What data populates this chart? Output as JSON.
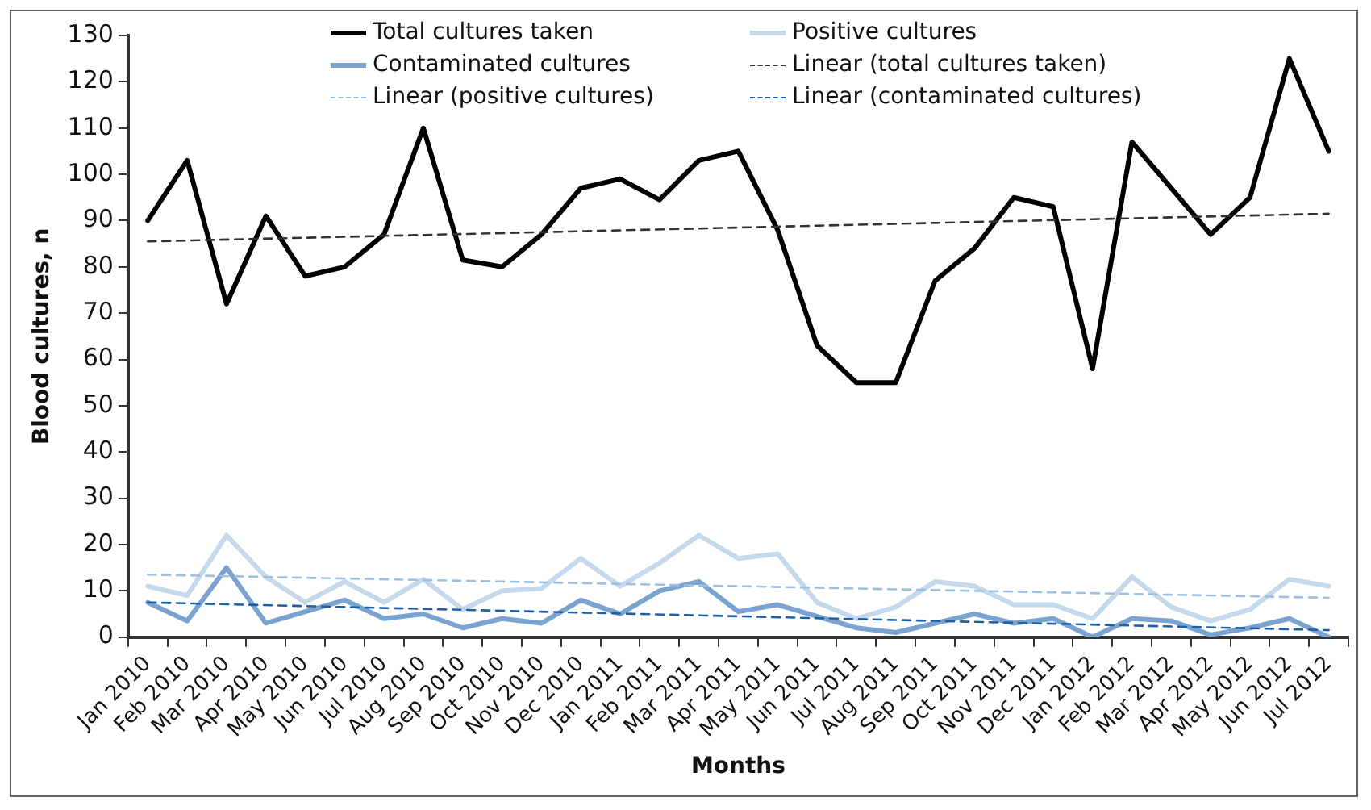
{
  "chart_data": {
    "type": "line",
    "xlabel": "Months",
    "ylabel": "Blood cultures, n",
    "categories": [
      "Jan 2010",
      "Feb 2010",
      "Mar 2010",
      "Apr 2010",
      "May 2010",
      "Jun 2010",
      "Jul 2010",
      "Aug 2010",
      "Sep 2010",
      "Oct 2010",
      "Nov 2010",
      "Dec 2010",
      "Jan 2011",
      "Feb 2011",
      "Mar 2011",
      "Apr 2011",
      "May 2011",
      "Jun 2011",
      "Jul 2011",
      "Aug 2011",
      "Sep 2011",
      "Oct 2011",
      "Nov 2011",
      "Dec 2011",
      "Jan 2012",
      "Feb 2012",
      "Mar 2012",
      "Apr 2012",
      "May 2012",
      "Jun 2012",
      "Jul 2012"
    ],
    "series": [
      {
        "name": "Total cultures taken",
        "color": "#000000",
        "values": [
          90,
          103,
          72,
          91,
          78,
          80,
          87,
          110,
          81.5,
          80,
          87,
          97,
          99,
          94.5,
          103,
          105,
          88,
          63,
          55,
          55,
          77,
          84,
          95,
          93,
          58,
          107,
          97,
          87,
          95,
          125,
          105
        ]
      },
      {
        "name": "Positive cultures",
        "color": "#c6d9ec",
        "values": [
          11,
          9,
          22,
          13,
          7.5,
          12,
          7.5,
          12.5,
          6,
          10,
          10.5,
          17,
          11,
          16,
          22,
          17,
          18,
          7.5,
          4,
          6.5,
          12,
          11,
          7,
          7,
          4,
          13,
          6.5,
          3.5,
          6,
          12.5,
          11
        ]
      },
      {
        "name": "Contaminated cultures",
        "color": "#7ba3cf",
        "values": [
          7.5,
          3.5,
          15,
          3,
          5.5,
          8,
          4,
          5,
          2,
          4,
          3,
          8,
          5,
          10,
          12,
          5.5,
          7,
          4.5,
          2,
          1,
          3,
          5,
          3,
          4,
          0,
          4,
          3.5,
          0.5,
          2,
          4,
          0
        ]
      },
      {
        "name": "Linear (total cultures taken)",
        "color": "#333333",
        "line_style": "dashed",
        "x": [
          "Jan 2010",
          "Jul 2012"
        ],
        "values": [
          85.5,
          91.5
        ]
      },
      {
        "name": "Linear (positive cultures)",
        "color": "#9dbfe0",
        "line_style": "dashed",
        "x": [
          "Jan 2010",
          "Jul 2012"
        ],
        "values": [
          13.5,
          8.5
        ]
      },
      {
        "name": "Linear (contaminated cultures)",
        "color": "#1f5fa6",
        "line_style": "dashed",
        "x": [
          "Jan 2010",
          "Jul 2012"
        ],
        "values": [
          7.5,
          1.5
        ]
      }
    ],
    "ylim": [
      0,
      130
    ],
    "yticks": [
      0,
      10,
      20,
      30,
      40,
      50,
      60,
      70,
      80,
      90,
      100,
      110,
      120,
      130
    ],
    "grid": false,
    "legend": "top",
    "marker": "none"
  }
}
